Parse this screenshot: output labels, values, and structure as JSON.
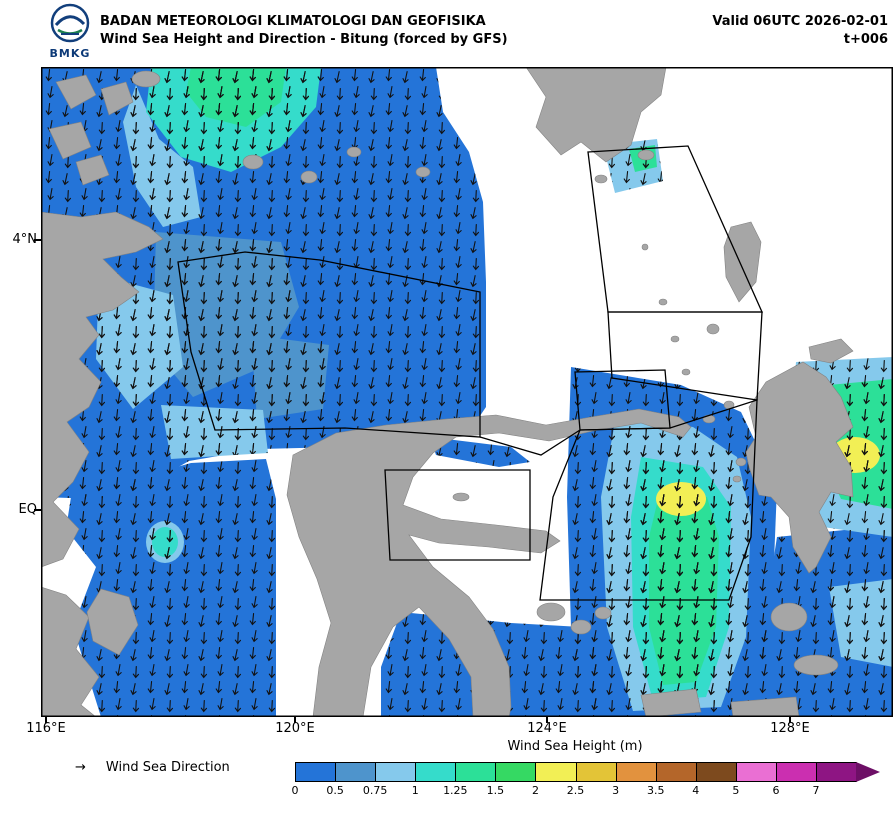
{
  "header": {
    "logo_text": "BMKG",
    "agency": "BADAN METEOROLOGI KLIMATOLOGI DAN GEOFISIKA",
    "product": "Wind Sea Height and Direction - Bitung (forced by GFS)",
    "valid_time": "Valid 06UTC 2026-02-01",
    "forecast_step": "t+006"
  },
  "map": {
    "lat_ticks": [
      "4°N",
      "EQ"
    ],
    "lon_ticks": [
      "116°E",
      "120°E",
      "124°E",
      "128°E"
    ],
    "land_color": "#a6a6a6",
    "sea_color": "#ffffff",
    "zone_line_color": "#000000",
    "arrow_color": "#111111"
  },
  "legend": {
    "direction_symbol": "→",
    "direction_label": "Wind Sea Direction",
    "colorbar_title": "Wind Sea Height (m)",
    "stops": [
      {
        "label": "0",
        "color": "#2474d8"
      },
      {
        "label": "0.5",
        "color": "#4e94cc"
      },
      {
        "label": "0.75",
        "color": "#85c9ec"
      },
      {
        "label": "1",
        "color": "#35dccb"
      },
      {
        "label": "1.25",
        "color": "#2ce098"
      },
      {
        "label": "1.5",
        "color": "#35d963"
      },
      {
        "label": "2",
        "color": "#f2ef55"
      },
      {
        "label": "2.5",
        "color": "#e3c437"
      },
      {
        "label": "3",
        "color": "#e2923e"
      },
      {
        "label": "3.5",
        "color": "#b4662a"
      },
      {
        "label": "4",
        "color": "#7d4a1e"
      },
      {
        "label": "5",
        "color": "#ea6fd3"
      },
      {
        "label": "6",
        "color": "#cb2fb0"
      },
      {
        "label": "7",
        "color": "#8e1583"
      }
    ],
    "arrow_color": "#6d0f66"
  }
}
